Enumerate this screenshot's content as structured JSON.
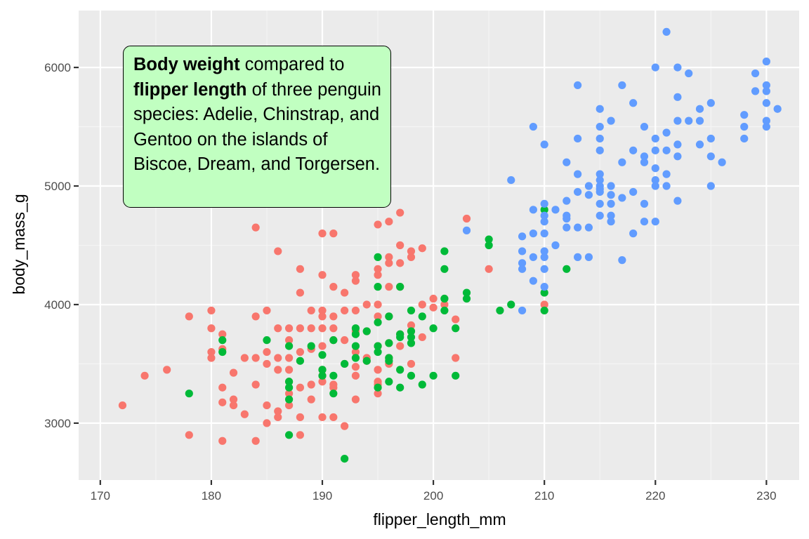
{
  "chart_data": {
    "type": "scatter",
    "xlabel": "flipper_length_mm",
    "ylabel": "body_mass_g",
    "xlim": [
      168.05,
      232.95
    ],
    "ylim": [
      2520,
      6480
    ],
    "xticks": [
      170,
      180,
      190,
      200,
      210,
      220,
      230
    ],
    "yticks": [
      3000,
      4000,
      5000,
      6000
    ],
    "grid": true,
    "legend": "none",
    "annotation": {
      "segments": [
        {
          "text": "Body weight",
          "bold": true
        },
        {
          "text": " compared to ",
          "bold": false
        },
        {
          "text": "flipper length",
          "bold": true
        },
        {
          "text": " of three penguin species: Adelie, Chinstrap, and Gentoo on the islands of Biscoe, Dream, and Torgersen.",
          "bold": false
        }
      ],
      "fill": "#c1ffc1"
    },
    "series": [
      {
        "color": "#f8766d",
        "points": [
          [
            172,
            3150
          ],
          [
            174,
            3400
          ],
          [
            176,
            3450
          ],
          [
            178,
            3900
          ],
          [
            178,
            2900
          ],
          [
            180,
            3950
          ],
          [
            180,
            3800
          ],
          [
            180,
            3600
          ],
          [
            180,
            3550
          ],
          [
            181,
            3750
          ],
          [
            181,
            3625
          ],
          [
            181,
            3300
          ],
          [
            181,
            3175
          ],
          [
            181,
            2850
          ],
          [
            182,
            3425
          ],
          [
            182,
            3200
          ],
          [
            182,
            3150
          ],
          [
            183,
            3075
          ],
          [
            183,
            3550
          ],
          [
            184,
            4650
          ],
          [
            184,
            3900
          ],
          [
            184,
            3550
          ],
          [
            184,
            3325
          ],
          [
            184,
            2850
          ],
          [
            185,
            3950
          ],
          [
            185,
            3600
          ],
          [
            185,
            3500
          ],
          [
            185,
            3150
          ],
          [
            185,
            3000
          ],
          [
            186,
            4450
          ],
          [
            186,
            3800
          ],
          [
            186,
            3550
          ],
          [
            186,
            3450
          ],
          [
            186,
            3100
          ],
          [
            186,
            3050
          ],
          [
            187,
            3800
          ],
          [
            187,
            3700
          ],
          [
            187,
            3550
          ],
          [
            187,
            3450
          ],
          [
            187,
            3350
          ],
          [
            187,
            3250
          ],
          [
            187,
            3150
          ],
          [
            188,
            4300
          ],
          [
            188,
            4100
          ],
          [
            188,
            3800
          ],
          [
            188,
            3600
          ],
          [
            188,
            3300
          ],
          [
            188,
            3050
          ],
          [
            188,
            2900
          ],
          [
            189,
            3950
          ],
          [
            189,
            3800
          ],
          [
            189,
            3625
          ],
          [
            189,
            3325
          ],
          [
            189,
            3200
          ],
          [
            190,
            4600
          ],
          [
            190,
            4250
          ],
          [
            190,
            3950
          ],
          [
            190,
            3900
          ],
          [
            190,
            3800
          ],
          [
            190,
            3650
          ],
          [
            190,
            3450
          ],
          [
            190,
            3400
          ],
          [
            190,
            3050
          ],
          [
            190,
            3350
          ],
          [
            191,
            4600
          ],
          [
            191,
            4150
          ],
          [
            191,
            3900
          ],
          [
            191,
            3800
          ],
          [
            191,
            3700
          ],
          [
            191,
            3325
          ],
          [
            191,
            3300
          ],
          [
            191,
            3050
          ],
          [
            192,
            4100
          ],
          [
            192,
            3950
          ],
          [
            192,
            3700
          ],
          [
            192,
            3500
          ],
          [
            192,
            2975
          ],
          [
            193,
            4250
          ],
          [
            193,
            4200
          ],
          [
            193,
            3950
          ],
          [
            193,
            3775
          ],
          [
            193,
            3600
          ],
          [
            193,
            3475
          ],
          [
            193,
            3400
          ],
          [
            193,
            3200
          ],
          [
            194,
            4000
          ],
          [
            194,
            3775
          ],
          [
            194,
            3550
          ],
          [
            194,
            3525
          ],
          [
            195,
            4675
          ],
          [
            195,
            4300
          ],
          [
            195,
            4250
          ],
          [
            195,
            4000
          ],
          [
            195,
            3900
          ],
          [
            195,
            3650
          ],
          [
            195,
            3450
          ],
          [
            195,
            3350
          ],
          [
            195,
            3325
          ],
          [
            195,
            3250
          ],
          [
            196,
            4700
          ],
          [
            196,
            4400
          ],
          [
            196,
            4350
          ],
          [
            196,
            4150
          ],
          [
            196,
            3900
          ],
          [
            196,
            3675
          ],
          [
            196,
            3550
          ],
          [
            196,
            3500
          ],
          [
            197,
            4775
          ],
          [
            197,
            4500
          ],
          [
            197,
            4350
          ],
          [
            197,
            4150
          ],
          [
            197,
            3750
          ],
          [
            197,
            3650
          ],
          [
            198,
            4450
          ],
          [
            198,
            4400
          ],
          [
            198,
            3825
          ],
          [
            198,
            3775
          ],
          [
            198,
            3500
          ],
          [
            199,
            4475
          ],
          [
            199,
            4000
          ],
          [
            199,
            3725
          ],
          [
            200,
            4050
          ],
          [
            200,
            3975
          ],
          [
            201,
            4000
          ],
          [
            201,
            4050
          ],
          [
            202,
            3875
          ],
          [
            202,
            3550
          ],
          [
            203,
            4725
          ],
          [
            205,
            4300
          ],
          [
            210,
            4000
          ]
        ]
      },
      {
        "color": "#00ba38",
        "points": [
          [
            178,
            3250
          ],
          [
            181,
            3700
          ],
          [
            181,
            3600
          ],
          [
            185,
            3700
          ],
          [
            187,
            3650
          ],
          [
            187,
            3350
          ],
          [
            187,
            3300
          ],
          [
            187,
            3200
          ],
          [
            187,
            2900
          ],
          [
            188,
            3525
          ],
          [
            189,
            3650
          ],
          [
            190,
            3575
          ],
          [
            190,
            3450
          ],
          [
            190,
            3400
          ],
          [
            191,
            3700
          ],
          [
            191,
            3400
          ],
          [
            191,
            3250
          ],
          [
            192,
            3500
          ],
          [
            192,
            2700
          ],
          [
            193,
            3800
          ],
          [
            193,
            3750
          ],
          [
            193,
            3650
          ],
          [
            193,
            3550
          ],
          [
            194,
            3775
          ],
          [
            194,
            3525
          ],
          [
            195,
            4400
          ],
          [
            195,
            4150
          ],
          [
            195,
            3850
          ],
          [
            195,
            3650
          ],
          [
            195,
            3600
          ],
          [
            195,
            3300
          ],
          [
            196,
            3900
          ],
          [
            196,
            3675
          ],
          [
            196,
            3550
          ],
          [
            196,
            3525
          ],
          [
            196,
            3350
          ],
          [
            197,
            4150
          ],
          [
            197,
            3750
          ],
          [
            197,
            3725
          ],
          [
            197,
            3450
          ],
          [
            197,
            3300
          ],
          [
            198,
            3950
          ],
          [
            198,
            3775
          ],
          [
            198,
            3725
          ],
          [
            198,
            3675
          ],
          [
            198,
            3400
          ],
          [
            199,
            3900
          ],
          [
            199,
            3325
          ],
          [
            200,
            3800
          ],
          [
            200,
            3400
          ],
          [
            201,
            4450
          ],
          [
            201,
            4300
          ],
          [
            201,
            4050
          ],
          [
            201,
            3950
          ],
          [
            202,
            3800
          ],
          [
            202,
            3400
          ],
          [
            203,
            4100
          ],
          [
            203,
            4050
          ],
          [
            205,
            4550
          ],
          [
            205,
            4500
          ],
          [
            206,
            3950
          ],
          [
            207,
            4000
          ],
          [
            210,
            4800
          ],
          [
            210,
            4100
          ],
          [
            210,
            3950
          ],
          [
            212,
            4300
          ]
        ]
      },
      {
        "color": "#619cff",
        "points": [
          [
            203,
            4625
          ],
          [
            207,
            5050
          ],
          [
            208,
            4575
          ],
          [
            208,
            4450
          ],
          [
            208,
            4350
          ],
          [
            208,
            4300
          ],
          [
            208,
            3950
          ],
          [
            209,
            5500
          ],
          [
            209,
            4800
          ],
          [
            209,
            4600
          ],
          [
            209,
            4400
          ],
          [
            209,
            4200
          ],
          [
            210,
            5350
          ],
          [
            210,
            4850
          ],
          [
            210,
            4750
          ],
          [
            210,
            4700
          ],
          [
            210,
            4600
          ],
          [
            210,
            4450
          ],
          [
            210,
            4400
          ],
          [
            210,
            4300
          ],
          [
            210,
            4150
          ],
          [
            211,
            4800
          ],
          [
            211,
            4500
          ],
          [
            212,
            5200
          ],
          [
            212,
            4875
          ],
          [
            212,
            4750
          ],
          [
            212,
            4725
          ],
          [
            212,
            4650
          ],
          [
            213,
            5850
          ],
          [
            213,
            5400
          ],
          [
            213,
            5100
          ],
          [
            213,
            4950
          ],
          [
            213,
            4650
          ],
          [
            213,
            4400
          ],
          [
            214,
            5000
          ],
          [
            214,
            4925
          ],
          [
            214,
            4650
          ],
          [
            214,
            4400
          ],
          [
            215,
            5650
          ],
          [
            215,
            5500
          ],
          [
            215,
            5400
          ],
          [
            215,
            5300
          ],
          [
            215,
            5100
          ],
          [
            215,
            5050
          ],
          [
            215,
            5000
          ],
          [
            215,
            4975
          ],
          [
            215,
            4950
          ],
          [
            215,
            4850
          ],
          [
            215,
            4750
          ],
          [
            216,
            5550
          ],
          [
            216,
            5000
          ],
          [
            216,
            4925
          ],
          [
            216,
            4750
          ],
          [
            216,
            4700
          ],
          [
            216,
            4850
          ],
          [
            217,
            5850
          ],
          [
            217,
            5200
          ],
          [
            217,
            4900
          ],
          [
            217,
            4375
          ],
          [
            218,
            5700
          ],
          [
            218,
            5300
          ],
          [
            218,
            4950
          ],
          [
            218,
            4600
          ],
          [
            219,
            5500
          ],
          [
            219,
            5250
          ],
          [
            219,
            5200
          ],
          [
            219,
            4850
          ],
          [
            219,
            4700
          ],
          [
            220,
            6000
          ],
          [
            220,
            5400
          ],
          [
            220,
            5300
          ],
          [
            220,
            5150
          ],
          [
            220,
            5050
          ],
          [
            220,
            5000
          ],
          [
            220,
            4700
          ],
          [
            221,
            6300
          ],
          [
            221,
            5450
          ],
          [
            221,
            5300
          ],
          [
            221,
            5100
          ],
          [
            221,
            5000
          ],
          [
            222,
            6000
          ],
          [
            222,
            5750
          ],
          [
            222,
            5550
          ],
          [
            222,
            5350
          ],
          [
            222,
            5250
          ],
          [
            222,
            4875
          ],
          [
            223,
            5950
          ],
          [
            223,
            5550
          ],
          [
            224,
            5650
          ],
          [
            224,
            5550
          ],
          [
            224,
            5350
          ],
          [
            225,
            5700
          ],
          [
            225,
            5400
          ],
          [
            225,
            5250
          ],
          [
            225,
            5000
          ],
          [
            226,
            5200
          ],
          [
            228,
            5600
          ],
          [
            228,
            5500
          ],
          [
            228,
            5400
          ],
          [
            229,
            5950
          ],
          [
            229,
            5800
          ],
          [
            230,
            6050
          ],
          [
            230,
            5850
          ],
          [
            230,
            5800
          ],
          [
            230,
            5700
          ],
          [
            230,
            5550
          ],
          [
            230,
            5500
          ],
          [
            231,
            5650
          ]
        ]
      }
    ]
  }
}
